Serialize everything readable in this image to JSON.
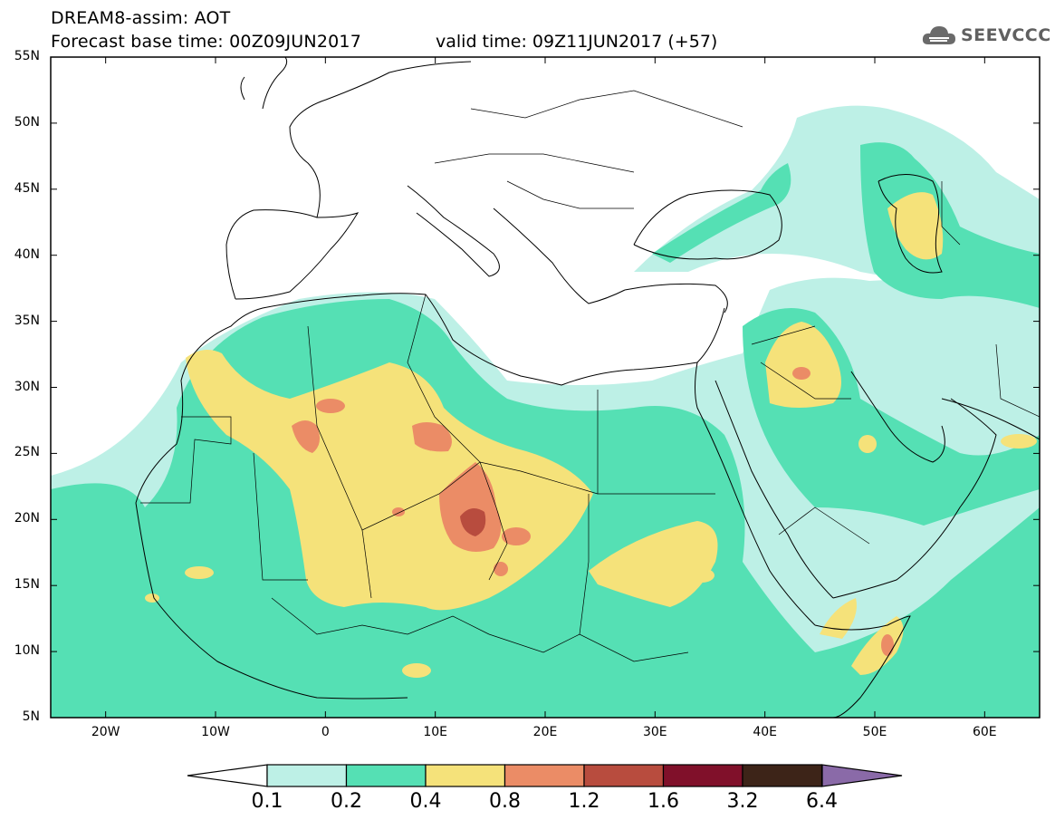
{
  "header": {
    "title_line1": "DREAM8-assim: AOT",
    "title_line2": "Forecast base time: 00Z09JUN2017",
    "valid_time": "valid time: 09Z11JUN2017 (+57)",
    "logo_text": "SEEVCCC"
  },
  "map": {
    "lat_labels": [
      "55N",
      "50N",
      "45N",
      "40N",
      "35N",
      "30N",
      "25N",
      "20N",
      "15N",
      "10N",
      "5N"
    ],
    "lon_labels": [
      "20W",
      "10W",
      "0",
      "10E",
      "20E",
      "30E",
      "40E",
      "50E",
      "60E"
    ],
    "lat_range": [
      5,
      55
    ],
    "lon_range": [
      -25,
      65
    ]
  },
  "colorbar": {
    "colors": [
      "#bdf0e6",
      "#55e0b4",
      "#f5e27a",
      "#eb8c66",
      "#b84c3e",
      "#80102a",
      "#3d2418",
      "#8a6aa8"
    ],
    "labels": [
      "0.1",
      "0.2",
      "0.4",
      "0.8",
      "1.2",
      "1.6",
      "3.2",
      "6.4"
    ]
  }
}
